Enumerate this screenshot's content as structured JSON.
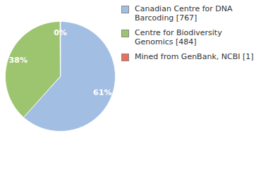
{
  "chart_data": {
    "type": "pie",
    "categories": [
      "Canadian Centre for DNA Barcoding [767]",
      "Centre for Biodiversity Genomics [484]",
      "Mined from GenBank, NCBI [1]"
    ],
    "values": [
      61,
      38,
      0
    ],
    "value_labels": [
      "61%",
      "38%",
      "0%"
    ],
    "colors": [
      "#a3bee3",
      "#9dc46e",
      "#e8705f"
    ],
    "data_labels": true,
    "legend": "top-right"
  }
}
